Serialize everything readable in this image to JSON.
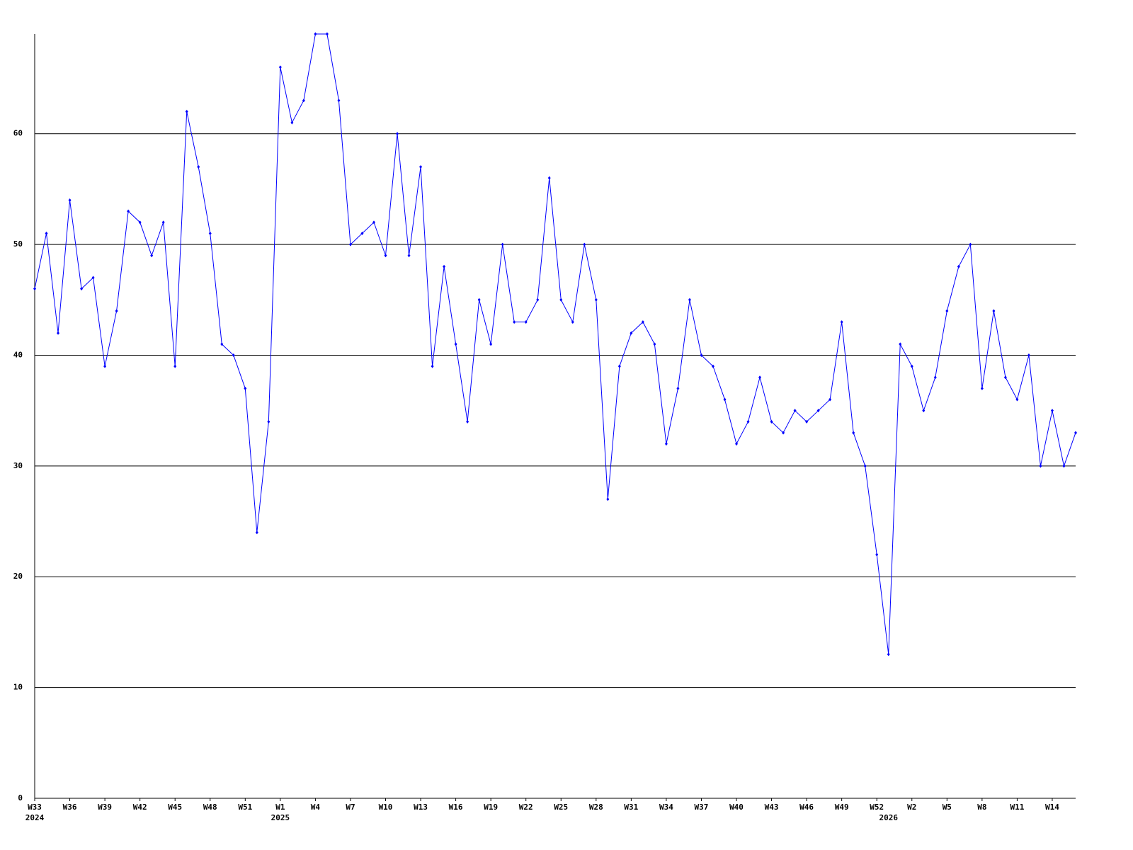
{
  "chart_data": {
    "type": "line",
    "categories": [
      "W33",
      null,
      null,
      "W36",
      null,
      null,
      "W39",
      null,
      null,
      "W42",
      null,
      null,
      "W45",
      null,
      null,
      "W48",
      null,
      null,
      "W51",
      null,
      null,
      "W1",
      null,
      null,
      "W4",
      null,
      null,
      "W7",
      null,
      null,
      "W10",
      null,
      null,
      "W13",
      null,
      null,
      "W16",
      null,
      null,
      "W19",
      null,
      null,
      "W22",
      null,
      null,
      "W25",
      null,
      null,
      "W28",
      null,
      null,
      "W31",
      null,
      null,
      "W34",
      null,
      null,
      "W37",
      null,
      null,
      "W40",
      null,
      null,
      "W43",
      null,
      null,
      "W46",
      null,
      null,
      "W49",
      null,
      null,
      "W52",
      null,
      null,
      "W2",
      null,
      null,
      "W5",
      null,
      null,
      "W8",
      null,
      null,
      "W11",
      null,
      null,
      "W14",
      null,
      null
    ],
    "category_years": [
      "2024",
      null,
      null,
      null,
      null,
      null,
      null,
      null,
      null,
      null,
      null,
      null,
      null,
      null,
      null,
      null,
      null,
      null,
      null,
      null,
      null,
      "2025",
      null,
      null,
      null,
      null,
      null,
      null,
      null,
      null,
      null,
      null,
      null,
      null,
      null,
      null,
      null,
      null,
      null,
      null,
      null,
      null,
      null,
      null,
      null,
      null,
      null,
      null,
      null,
      null,
      null,
      null,
      null,
      null,
      null,
      null,
      null,
      null,
      null,
      null,
      null,
      null,
      null,
      null,
      null,
      null,
      null,
      null,
      null,
      null,
      null,
      null,
      null,
      "2026",
      null,
      null,
      null,
      null,
      null,
      null,
      null,
      null,
      null,
      null,
      null,
      null,
      null,
      null,
      null,
      null
    ],
    "series": [
      {
        "color": "#0000ff",
        "values": [
          46,
          51,
          42,
          54,
          46,
          47,
          39,
          44,
          53,
          52,
          49,
          52,
          39,
          62,
          57,
          51,
          41,
          40,
          37,
          24,
          34,
          66,
          61,
          63,
          69,
          69,
          63,
          50,
          51,
          52,
          49,
          60,
          49,
          57,
          39,
          48,
          41,
          34,
          45,
          41,
          50,
          43,
          43,
          45,
          56,
          45,
          43,
          50,
          45,
          27,
          39,
          42,
          43,
          41,
          32,
          37,
          45,
          40,
          39,
          36,
          32,
          34,
          38,
          34,
          33,
          35,
          34,
          35,
          36,
          43,
          33,
          30,
          22,
          13,
          41,
          39,
          35,
          38,
          44,
          48,
          50,
          37,
          44,
          38,
          36,
          40,
          30,
          35,
          30,
          33
        ]
      }
    ],
    "ylim": [
      0,
      69
    ],
    "yticks": [
      0,
      10,
      20,
      30,
      40,
      50,
      60
    ],
    "grid": true
  }
}
